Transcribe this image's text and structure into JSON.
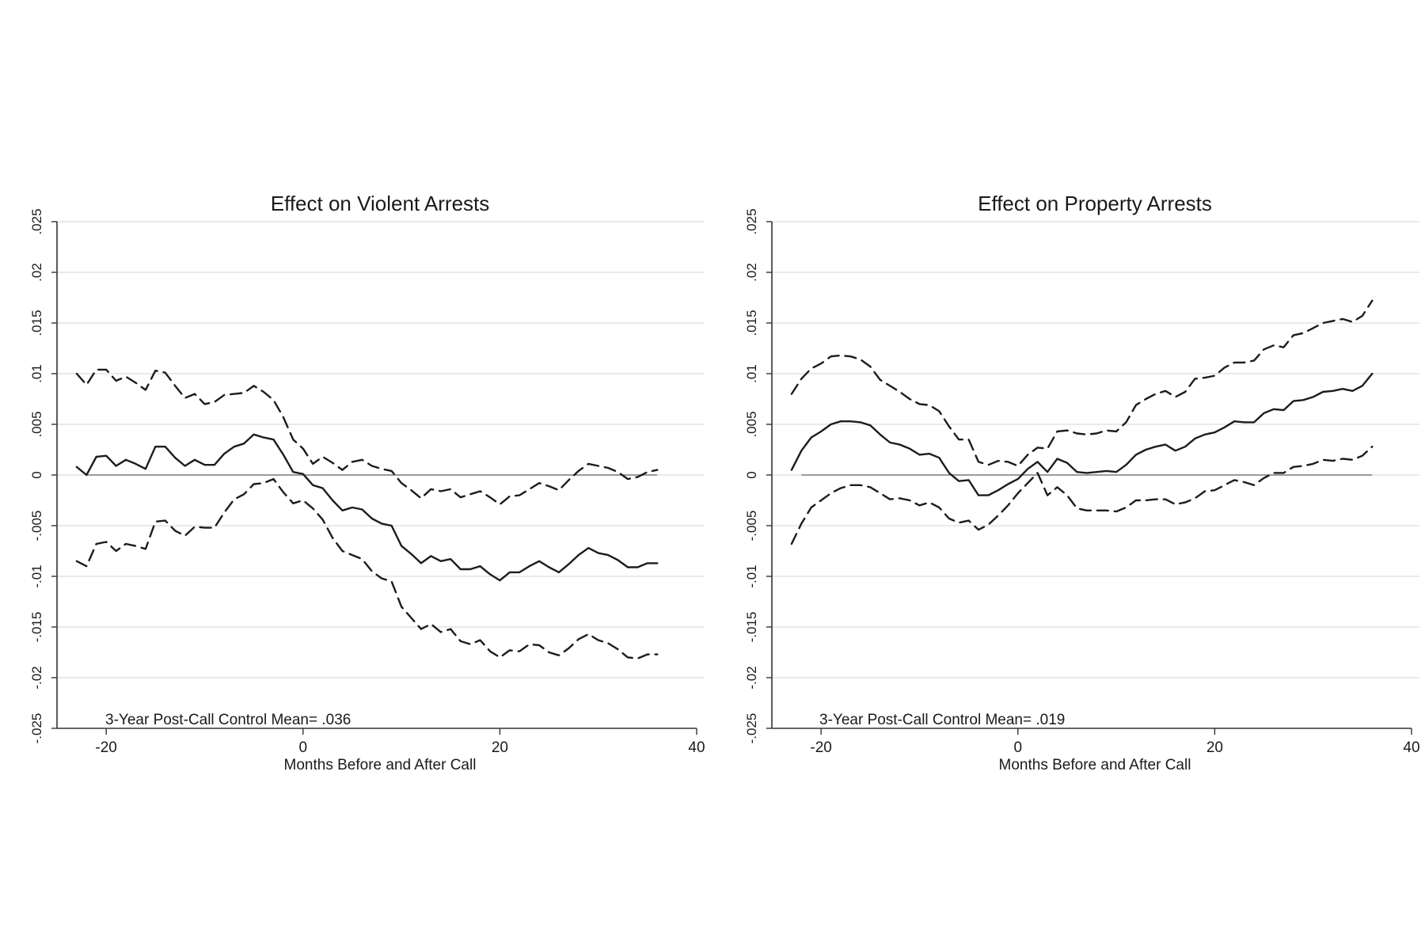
{
  "chart_data": [
    {
      "type": "line",
      "title": "Effect on Violent Arrests",
      "xlabel": "Months Before and After Call",
      "ylabel": "",
      "xlim": [
        -25,
        40
      ],
      "ylim": [
        -0.025,
        0.025
      ],
      "xticks": [
        -20,
        0,
        20,
        40
      ],
      "xtick_labels": [
        "-20",
        "0",
        "20",
        "40"
      ],
      "yticks": [
        -0.025,
        -0.02,
        -0.015,
        -0.01,
        -0.005,
        0,
        0.005,
        0.01,
        0.015,
        0.02,
        0.025
      ],
      "ytick_labels": [
        "-.025",
        "-.02",
        "-.015",
        "-.01",
        "-.005",
        "0",
        ".005",
        ".01",
        ".015",
        ".02",
        ".025"
      ],
      "grid": true,
      "reference_line": 0,
      "annotation": "3-Year Post-Call Control Mean= .036",
      "x": [
        -23,
        -22,
        -21,
        -20,
        -19,
        -18,
        -17,
        -16,
        -15,
        -14,
        -13,
        -12,
        -11,
        -10,
        -9,
        -8,
        -7,
        -6,
        -5,
        -4,
        -3,
        -2,
        -1,
        0,
        1,
        2,
        3,
        4,
        5,
        6,
        7,
        8,
        9,
        10,
        11,
        12,
        13,
        14,
        15,
        16,
        17,
        18,
        19,
        20,
        21,
        22,
        23,
        24,
        25,
        26,
        27,
        28,
        29,
        30,
        31,
        32,
        33,
        34,
        35,
        36
      ],
      "series": [
        {
          "style": "solid",
          "values": [
            0.0008,
            0.0,
            0.0018,
            0.0019,
            0.0009,
            0.0015,
            0.0011,
            0.0006,
            0.0028,
            0.0028,
            0.0017,
            0.0009,
            0.0015,
            0.001,
            0.001,
            0.0021,
            0.0028,
            0.0031,
            0.004,
            0.0037,
            0.0035,
            0.002,
            0.0003,
            0.0001,
            -0.001,
            -0.0013,
            -0.0025,
            -0.0035,
            -0.0032,
            -0.0034,
            -0.0043,
            -0.0048,
            -0.005,
            -0.007,
            -0.0078,
            -0.0087,
            -0.008,
            -0.0085,
            -0.0083,
            -0.0093,
            -0.0093,
            -0.009,
            -0.0098,
            -0.0104,
            -0.0096,
            -0.0096,
            -0.009,
            -0.0085,
            -0.0091,
            -0.0096,
            -0.0088,
            -0.0079,
            -0.0072,
            -0.0077,
            -0.0079,
            -0.0084,
            -0.0091,
            -0.0091,
            -0.0087,
            -0.0087
          ]
        },
        {
          "style": "dashed",
          "values": [
            0.01,
            0.0089,
            0.0104,
            0.0104,
            0.0093,
            0.0097,
            0.0091,
            0.0084,
            0.0103,
            0.0101,
            0.0088,
            0.0076,
            0.008,
            0.007,
            0.0072,
            0.0079,
            0.008,
            0.0081,
            0.0088,
            0.0082,
            0.0074,
            0.0057,
            0.0035,
            0.0026,
            0.0011,
            0.0018,
            0.0012,
            0.0005,
            0.0013,
            0.0015,
            0.0009,
            0.0006,
            0.0004,
            -0.0008,
            -0.0015,
            -0.0023,
            -0.0014,
            -0.0016,
            -0.0014,
            -0.0022,
            -0.0019,
            -0.0016,
            -0.0022,
            -0.0029,
            -0.0021,
            -0.002,
            -0.0014,
            -0.0008,
            -0.0011,
            -0.0015,
            -0.0005,
            0.0004,
            0.0011,
            0.0009,
            0.0007,
            0.0003,
            -0.0004,
            -0.0002,
            0.0003,
            0.0005
          ]
        },
        {
          "style": "dashed",
          "values": [
            -0.0085,
            -0.009,
            -0.0068,
            -0.0066,
            -0.0075,
            -0.0068,
            -0.007,
            -0.0073,
            -0.0046,
            -0.0045,
            -0.0055,
            -0.006,
            -0.0051,
            -0.0052,
            -0.0052,
            -0.0037,
            -0.0024,
            -0.0019,
            -0.0009,
            -0.0008,
            -0.0004,
            -0.0017,
            -0.0028,
            -0.0025,
            -0.0033,
            -0.0044,
            -0.0062,
            -0.0075,
            -0.0079,
            -0.0083,
            -0.0095,
            -0.0102,
            -0.0105,
            -0.013,
            -0.0141,
            -0.0152,
            -0.0147,
            -0.0155,
            -0.0152,
            -0.0164,
            -0.0167,
            -0.0163,
            -0.0174,
            -0.018,
            -0.0173,
            -0.0174,
            -0.0167,
            -0.0168,
            -0.0175,
            -0.0178,
            -0.0171,
            -0.0162,
            -0.0157,
            -0.0163,
            -0.0166,
            -0.0172,
            -0.018,
            -0.0181,
            -0.0177,
            -0.0177
          ]
        }
      ]
    },
    {
      "type": "line",
      "title": "Effect on Property Arrests",
      "xlabel": "Months Before and After Call",
      "ylabel": "",
      "xlim": [
        -25,
        40
      ],
      "ylim": [
        -0.025,
        0.025
      ],
      "xticks": [
        -20,
        0,
        20,
        40
      ],
      "xtick_labels": [
        "-20",
        "0",
        "20",
        "40"
      ],
      "yticks": [
        -0.025,
        -0.02,
        -0.015,
        -0.01,
        -0.005,
        0,
        0.005,
        0.01,
        0.015,
        0.02,
        0.025
      ],
      "ytick_labels": [
        "-.025",
        "-.02",
        "-.015",
        "-.01",
        "-.005",
        "0",
        ".005",
        ".01",
        ".015",
        ".02",
        ".025"
      ],
      "grid": true,
      "reference_line": 0,
      "annotation": "3-Year Post-Call Control Mean= .019",
      "x": [
        -23,
        -22,
        -21,
        -20,
        -19,
        -18,
        -17,
        -16,
        -15,
        -14,
        -13,
        -12,
        -11,
        -10,
        -9,
        -8,
        -7,
        -6,
        -5,
        -4,
        -3,
        -2,
        -1,
        0,
        1,
        2,
        3,
        4,
        5,
        6,
        7,
        8,
        9,
        10,
        11,
        12,
        13,
        14,
        15,
        16,
        17,
        18,
        19,
        20,
        21,
        22,
        23,
        24,
        25,
        26,
        27,
        28,
        29,
        30,
        31,
        32,
        33,
        34,
        35,
        36
      ],
      "series": [
        {
          "style": "solid",
          "values": [
            0.0005,
            0.0024,
            0.0037,
            0.0043,
            0.005,
            0.0053,
            0.0053,
            0.0052,
            0.0049,
            0.004,
            0.0032,
            0.003,
            0.0026,
            0.002,
            0.0021,
            0.0017,
            0.0002,
            -0.0006,
            -0.0005,
            -0.002,
            -0.002,
            -0.0015,
            -0.0009,
            -0.0004,
            0.0006,
            0.0013,
            0.0003,
            0.0016,
            0.0012,
            0.0003,
            0.0002,
            0.0003,
            0.0004,
            0.0003,
            0.001,
            0.002,
            0.0025,
            0.0028,
            0.003,
            0.0024,
            0.0028,
            0.0036,
            0.004,
            0.0042,
            0.0047,
            0.0053,
            0.0052,
            0.0052,
            0.0061,
            0.0065,
            0.0064,
            0.0073,
            0.0074,
            0.0077,
            0.0082,
            0.0083,
            0.0085,
            0.0083,
            0.0088,
            0.01
          ]
        },
        {
          "style": "dashed",
          "values": [
            0.008,
            0.0095,
            0.0105,
            0.011,
            0.0117,
            0.0118,
            0.0117,
            0.0114,
            0.0107,
            0.0094,
            0.0088,
            0.0082,
            0.0075,
            0.007,
            0.0069,
            0.0063,
            0.0048,
            0.0035,
            0.0035,
            0.0013,
            0.001,
            0.0014,
            0.0013,
            0.0009,
            0.002,
            0.0027,
            0.0026,
            0.0043,
            0.0044,
            0.0041,
            0.004,
            0.0041,
            0.0044,
            0.0043,
            0.0052,
            0.0069,
            0.0075,
            0.008,
            0.0083,
            0.0077,
            0.0082,
            0.0095,
            0.0096,
            0.0098,
            0.0106,
            0.0111,
            0.0111,
            0.0113,
            0.0124,
            0.0128,
            0.0126,
            0.0138,
            0.014,
            0.0145,
            0.015,
            0.0152,
            0.0154,
            0.0151,
            0.0157,
            0.0172
          ]
        },
        {
          "style": "dashed",
          "values": [
            -0.0068,
            -0.0048,
            -0.0032,
            -0.0025,
            -0.0018,
            -0.0013,
            -0.001,
            -0.001,
            -0.0012,
            -0.0018,
            -0.0024,
            -0.0023,
            -0.0025,
            -0.003,
            -0.0027,
            -0.0032,
            -0.0043,
            -0.0047,
            -0.0045,
            -0.0054,
            -0.0049,
            -0.004,
            -0.003,
            -0.0018,
            -0.0008,
            0.0002,
            -0.002,
            -0.0012,
            -0.002,
            -0.0033,
            -0.0035,
            -0.0035,
            -0.0035,
            -0.0036,
            -0.0032,
            -0.0025,
            -0.0025,
            -0.0024,
            -0.0024,
            -0.0029,
            -0.0027,
            -0.0023,
            -0.0016,
            -0.0015,
            -0.001,
            -0.0005,
            -0.0007,
            -0.001,
            -0.0003,
            0.0002,
            0.0002,
            0.0008,
            0.0009,
            0.0011,
            0.0015,
            0.0014,
            0.0016,
            0.0015,
            0.0019,
            0.0028
          ]
        }
      ]
    }
  ]
}
